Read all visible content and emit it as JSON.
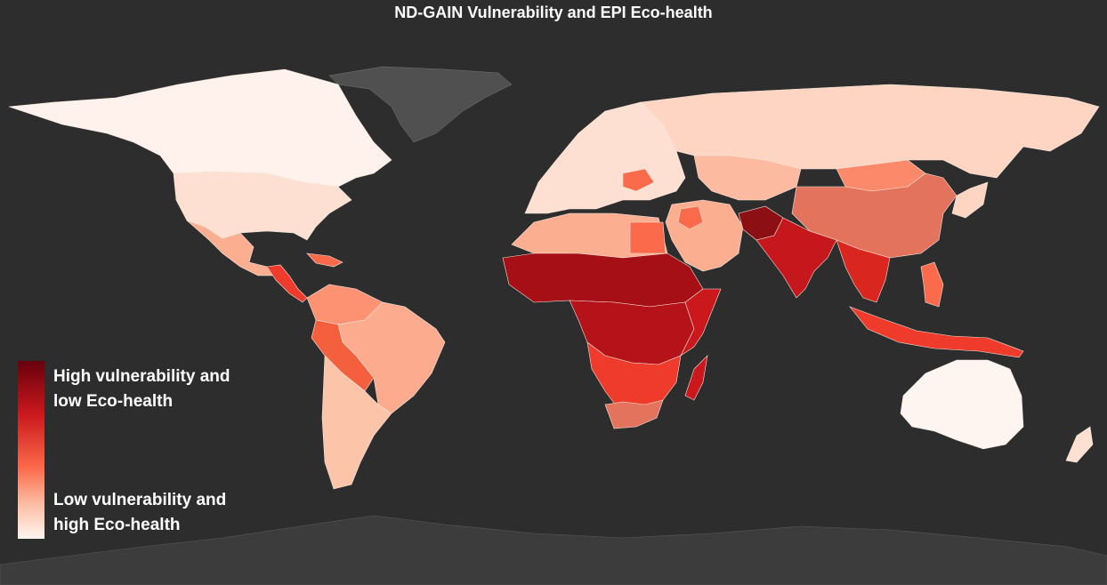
{
  "title": "ND-GAIN Vulnerability and EPI Eco-health",
  "legend": {
    "high_line1": "High vulnerability and",
    "high_line2": "low Eco-health",
    "low_line1": "Low vulnerability and",
    "low_line2": "high Eco-health",
    "color_high": "#67000d",
    "color_low": "#fff5f0"
  },
  "colors": {
    "background": "#2d2d2d",
    "ocean": "#2d2d2d",
    "no_data": "#4a4a4a",
    "border": "#f5e6dc"
  }
}
